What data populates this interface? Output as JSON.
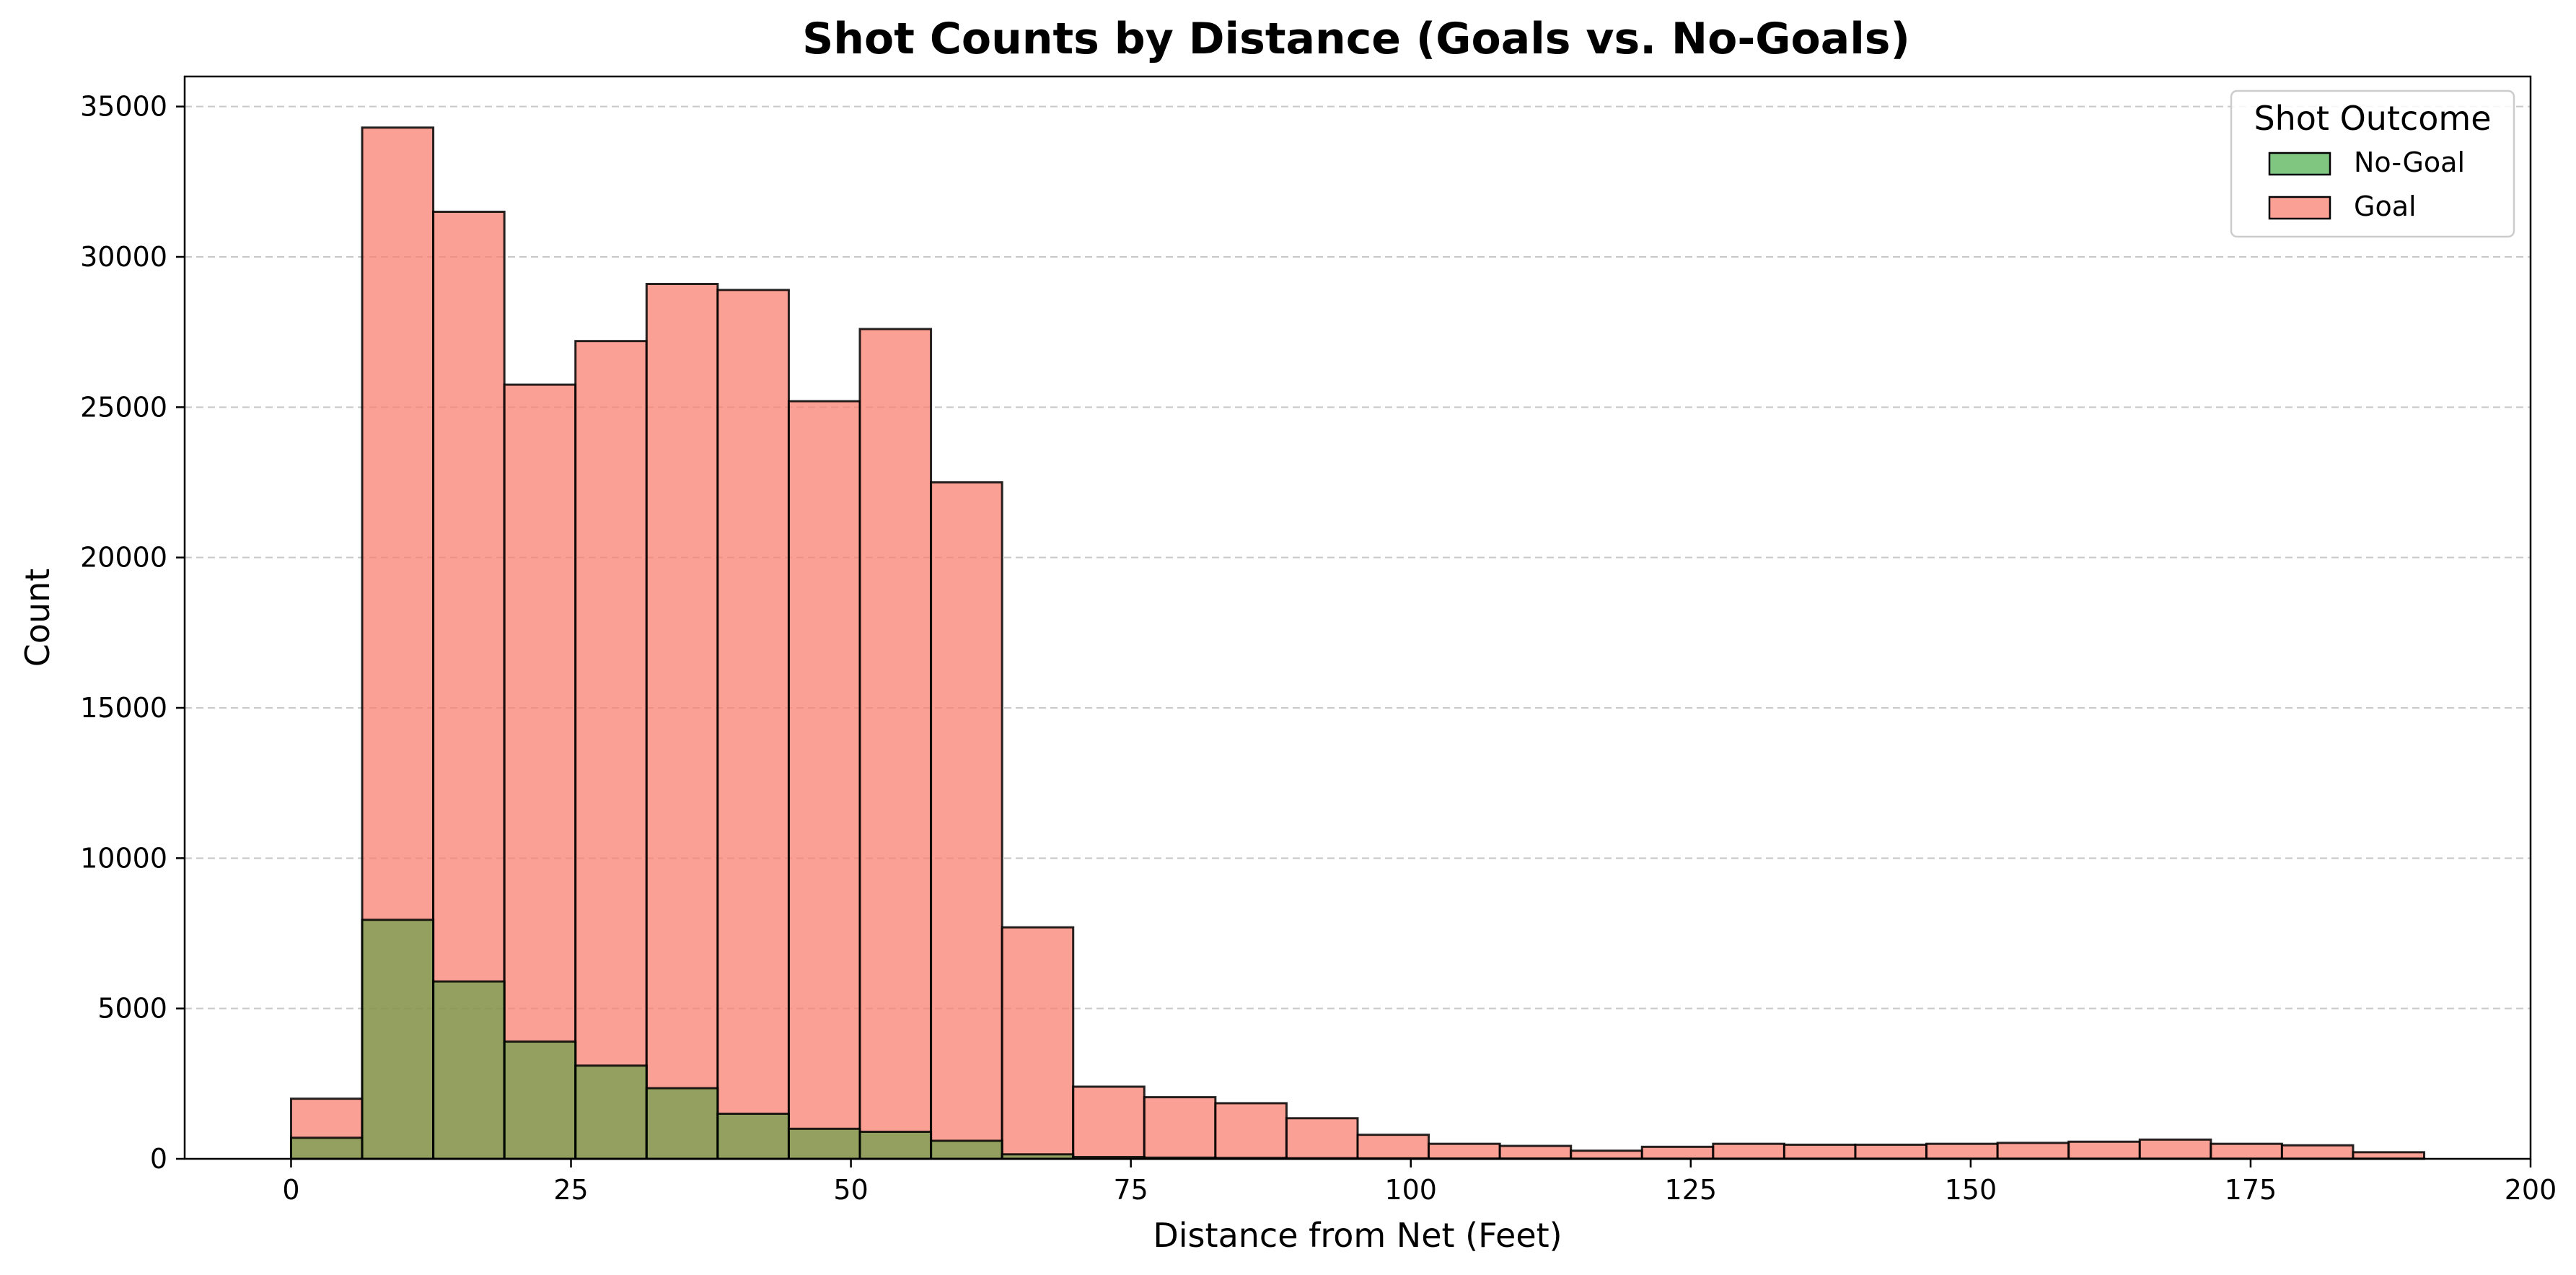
{
  "chart_data": {
    "type": "histogram",
    "title": "Shot Counts by Distance (Goals vs. No-Goals)",
    "xlabel": "Distance from Net (Feet)",
    "ylabel": "Count",
    "xlim": [
      -9.5,
      200
    ],
    "ylim": [
      0,
      36000
    ],
    "xticks": [
      0,
      25,
      50,
      75,
      100,
      125,
      150,
      175,
      200
    ],
    "yticks": [
      0,
      5000,
      10000,
      15000,
      20000,
      25000,
      30000,
      35000
    ],
    "grid": "y, dashed",
    "legend": {
      "title": "Shot Outcome",
      "placement": "top-right",
      "entries": [
        {
          "label": "No-Goal",
          "color": "#2ca02c"
        },
        {
          "label": "Goal",
          "color": "#fa8072"
        }
      ]
    },
    "bin_edges": [
      0,
      6.35,
      12.7,
      19.05,
      25.4,
      31.75,
      38.1,
      44.45,
      50.8,
      57.15,
      63.5,
      69.85,
      76.2,
      82.55,
      88.9,
      95.25,
      101.6,
      107.95,
      114.3,
      120.65,
      127.0,
      133.35,
      139.7,
      146.05,
      152.4,
      158.75,
      165.1,
      171.45,
      177.8,
      184.15,
      190.5
    ],
    "series": [
      {
        "name": "Goal",
        "color": "#fa8072",
        "values": [
          2000,
          34300,
          31500,
          25750,
          27200,
          29100,
          28900,
          25200,
          27600,
          22500,
          7700,
          2400,
          2050,
          1850,
          1350,
          800,
          500,
          430,
          270,
          400,
          500,
          470,
          470,
          500,
          530,
          570,
          640,
          500,
          450,
          220
        ]
      },
      {
        "name": "No-Goal",
        "color": "#2ca02c",
        "values": [
          700,
          7950,
          5900,
          3900,
          3100,
          2350,
          1500,
          1000,
          900,
          600,
          150,
          60,
          40,
          30,
          20,
          15,
          10,
          10,
          5,
          5,
          5,
          5,
          5,
          5,
          5,
          5,
          5,
          5,
          5,
          5
        ]
      }
    ]
  }
}
